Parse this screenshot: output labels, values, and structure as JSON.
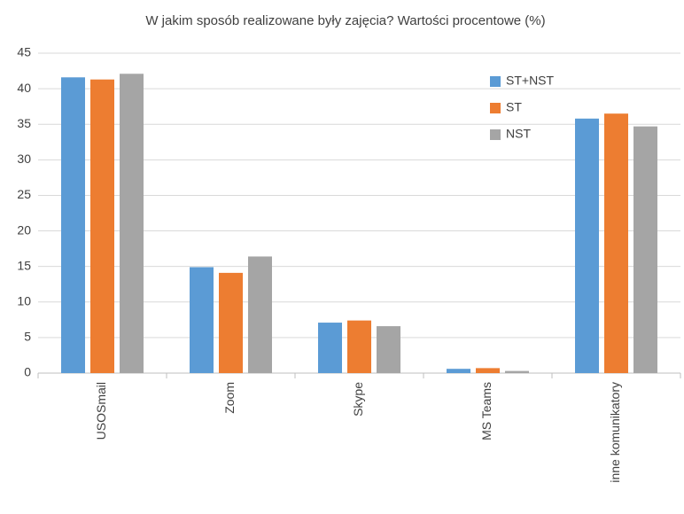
{
  "chart_data": {
    "type": "bar",
    "title": "W jakim sposób realizowane były zajęcia? Wartości procentowe (%)",
    "categories": [
      "USOSmail",
      "Zoom",
      "Skype",
      "MS Teams",
      "inne komunikatory"
    ],
    "series": [
      {
        "name": "ST+NST",
        "color": "#5b9bd5",
        "values": [
          41.6,
          14.9,
          7.1,
          0.6,
          35.8
        ]
      },
      {
        "name": "ST",
        "color": "#ed7d31",
        "values": [
          41.3,
          14.1,
          7.4,
          0.7,
          36.5
        ]
      },
      {
        "name": "NST",
        "color": "#a5a5a5",
        "values": [
          42.1,
          16.4,
          6.6,
          0.3,
          34.7
        ]
      }
    ],
    "ylim": [
      0,
      45
    ],
    "yticks": [
      0,
      5,
      10,
      15,
      20,
      25,
      30,
      35,
      40,
      45
    ],
    "grid": true,
    "legend": "upper-right"
  }
}
